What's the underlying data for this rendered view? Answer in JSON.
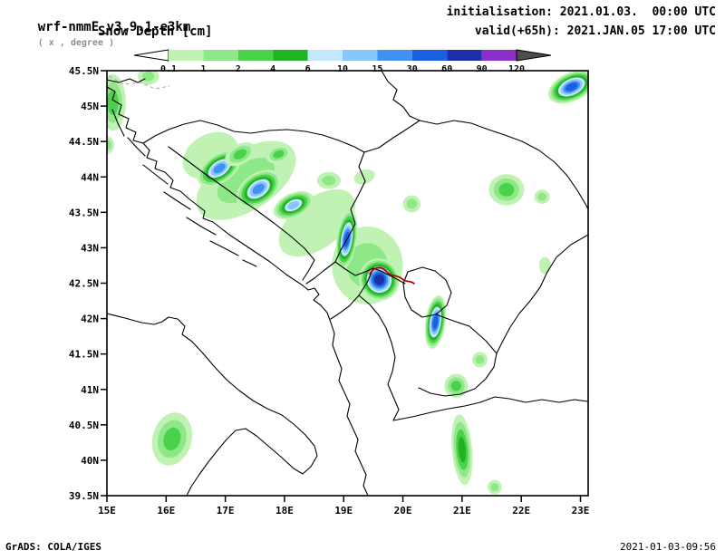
{
  "header": {
    "model": "wrf-nmmE_v3.9.1-e3km",
    "model_note": "( x , degree )",
    "variable": "Snow Depth [cm]",
    "initialisation": "initialisation: 2021.01.03.  00:00 UTC",
    "valid": "valid(+65h): 2021.JAN.05 17:00 UTC"
  },
  "footer": {
    "credit": "GrADS: COLA/IGES",
    "timestamp": "2021-01-03-09:56"
  },
  "legend": {
    "labels": [
      "0.1",
      "1",
      "2",
      "4",
      "6",
      "10",
      "15",
      "30",
      "60",
      "90",
      "120"
    ],
    "below_min_color": "#ffffff",
    "above_max_color": "#4d4d4d"
  },
  "chart_data": {
    "type": "heatmap",
    "title": "Snow Depth [cm]",
    "model": "wrf-nmmE_v3.9.1-e3km",
    "units": "cm",
    "lon_range": [
      15,
      23.13
    ],
    "lat_range": [
      39.5,
      45.5
    ],
    "x_ticks": [
      {
        "label": "15E",
        "lon": 15
      },
      {
        "label": "16E",
        "lon": 16
      },
      {
        "label": "17E",
        "lon": 17
      },
      {
        "label": "18E",
        "lon": 18
      },
      {
        "label": "19E",
        "lon": 19
      },
      {
        "label": "20E",
        "lon": 20
      },
      {
        "label": "21E",
        "lon": 21
      },
      {
        "label": "22E",
        "lon": 22
      },
      {
        "label": "23E",
        "lon": 23
      }
    ],
    "y_ticks": [
      {
        "label": "45.5N",
        "lat": 45.5
      },
      {
        "label": "45N",
        "lat": 45
      },
      {
        "label": "44.5N",
        "lat": 44.5
      },
      {
        "label": "44N",
        "lat": 44
      },
      {
        "label": "43.5N",
        "lat": 43.5
      },
      {
        "label": "43N",
        "lat": 43
      },
      {
        "label": "42.5N",
        "lat": 42.5
      },
      {
        "label": "42N",
        "lat": 42
      },
      {
        "label": "41.5N",
        "lat": 41.5
      },
      {
        "label": "41N",
        "lat": 41
      },
      {
        "label": "40.5N",
        "lat": 40.5
      },
      {
        "label": "40N",
        "lat": 40
      },
      {
        "label": "39.5N",
        "lat": 39.5
      }
    ],
    "levels": [
      0.1,
      1,
      2,
      4,
      6,
      10,
      15,
      30,
      60,
      90,
      120
    ],
    "level_colors": [
      "#c0f2b4",
      "#8ee887",
      "#4bd24b",
      "#22b322",
      "#c3e7ff",
      "#8ac6fb",
      "#3f92f2",
      "#1a5fe0",
      "#1c2fa6",
      "#8a2fc8",
      "#4d4d4d"
    ],
    "snow_cells": [
      {
        "lon": 16.75,
        "lat": 44.3,
        "rx_deg": 0.5,
        "ry_deg": 0.3,
        "rot_deg": -30,
        "max_cm": 0.1
      },
      {
        "lon": 17.35,
        "lat": 43.95,
        "rx_deg": 0.95,
        "ry_deg": 0.42,
        "rot_deg": -33,
        "max_cm": 1
      },
      {
        "lon": 18.55,
        "lat": 43.35,
        "rx_deg": 0.75,
        "ry_deg": 0.35,
        "rot_deg": -38,
        "max_cm": 0.1
      },
      {
        "lon": 19.4,
        "lat": 42.75,
        "rx_deg": 0.6,
        "ry_deg": 0.55,
        "rot_deg": 0,
        "max_cm": 1
      },
      {
        "lon": 15.1,
        "lat": 45.05,
        "rx_deg": 0.22,
        "ry_deg": 0.4,
        "rot_deg": 0,
        "max_cm": 2
      },
      {
        "lon": 15.7,
        "lat": 45.42,
        "rx_deg": 0.18,
        "ry_deg": 0.12,
        "rot_deg": 0,
        "max_cm": 1
      },
      {
        "lon": 15.02,
        "lat": 44.45,
        "rx_deg": 0.1,
        "ry_deg": 0.12,
        "rot_deg": 0,
        "max_cm": 1
      },
      {
        "lon": 22.85,
        "lat": 45.27,
        "rx_deg": 0.42,
        "ry_deg": 0.2,
        "rot_deg": -25,
        "max_cm": 30
      },
      {
        "lon": 16.9,
        "lat": 44.12,
        "rx_deg": 0.42,
        "ry_deg": 0.2,
        "rot_deg": -35,
        "max_cm": 15
      },
      {
        "lon": 17.25,
        "lat": 44.32,
        "rx_deg": 0.28,
        "ry_deg": 0.14,
        "rot_deg": -30,
        "max_cm": 2
      },
      {
        "lon": 17.9,
        "lat": 44.32,
        "rx_deg": 0.22,
        "ry_deg": 0.12,
        "rot_deg": -20,
        "max_cm": 2
      },
      {
        "lon": 17.56,
        "lat": 43.83,
        "rx_deg": 0.42,
        "ry_deg": 0.22,
        "rot_deg": -35,
        "max_cm": 15
      },
      {
        "lon": 18.15,
        "lat": 43.6,
        "rx_deg": 0.36,
        "ry_deg": 0.17,
        "rot_deg": -25,
        "max_cm": 10
      },
      {
        "lon": 18.75,
        "lat": 43.95,
        "rx_deg": 0.2,
        "ry_deg": 0.12,
        "rot_deg": 0,
        "max_cm": 1
      },
      {
        "lon": 19.35,
        "lat": 44.0,
        "rx_deg": 0.18,
        "ry_deg": 0.1,
        "rot_deg": -20,
        "max_cm": 0.1
      },
      {
        "lon": 19.05,
        "lat": 43.12,
        "rx_deg": 0.17,
        "ry_deg": 0.42,
        "rot_deg": 8,
        "max_cm": 30
      },
      {
        "lon": 19.6,
        "lat": 42.55,
        "rx_deg": 0.34,
        "ry_deg": 0.3,
        "rot_deg": -15,
        "max_cm": 60
      },
      {
        "lon": 20.55,
        "lat": 41.95,
        "rx_deg": 0.17,
        "ry_deg": 0.38,
        "rot_deg": 8,
        "max_cm": 30
      },
      {
        "lon": 20.15,
        "lat": 43.62,
        "rx_deg": 0.15,
        "ry_deg": 0.12,
        "rot_deg": 0,
        "max_cm": 1
      },
      {
        "lon": 21.75,
        "lat": 43.82,
        "rx_deg": 0.3,
        "ry_deg": 0.22,
        "rot_deg": 0,
        "max_cm": 2
      },
      {
        "lon": 22.35,
        "lat": 43.72,
        "rx_deg": 0.13,
        "ry_deg": 0.1,
        "rot_deg": 0,
        "max_cm": 1
      },
      {
        "lon": 22.4,
        "lat": 42.75,
        "rx_deg": 0.1,
        "ry_deg": 0.12,
        "rot_deg": 0,
        "max_cm": 0.1
      },
      {
        "lon": 21.3,
        "lat": 41.42,
        "rx_deg": 0.13,
        "ry_deg": 0.11,
        "rot_deg": 0,
        "max_cm": 1
      },
      {
        "lon": 20.9,
        "lat": 41.05,
        "rx_deg": 0.2,
        "ry_deg": 0.17,
        "rot_deg": 0,
        "max_cm": 2
      },
      {
        "lon": 21.0,
        "lat": 40.15,
        "rx_deg": 0.17,
        "ry_deg": 0.5,
        "rot_deg": -5,
        "max_cm": 4
      },
      {
        "lon": 21.55,
        "lat": 39.62,
        "rx_deg": 0.12,
        "ry_deg": 0.1,
        "rot_deg": 0,
        "max_cm": 1
      },
      {
        "lon": 16.1,
        "lat": 40.3,
        "rx_deg": 0.33,
        "ry_deg": 0.38,
        "rot_deg": 15,
        "max_cm": 2
      }
    ]
  }
}
